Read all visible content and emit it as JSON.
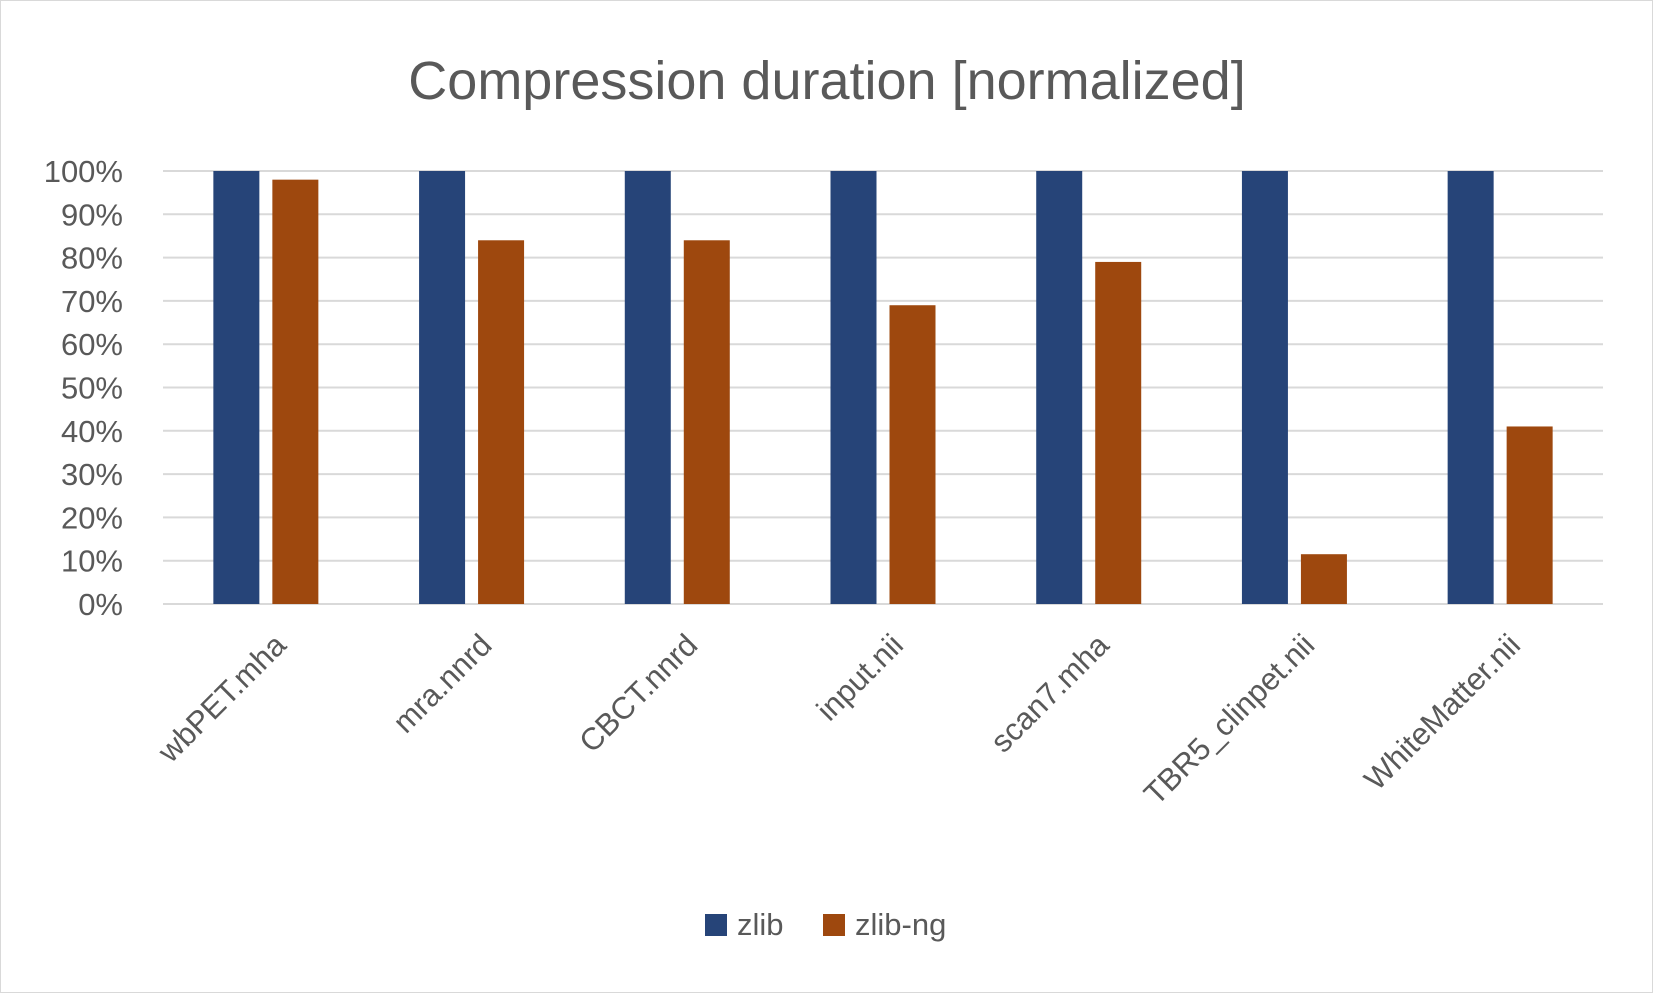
{
  "chart_data": {
    "type": "bar",
    "title": "Compression duration [normalized]",
    "xlabel": "",
    "ylabel": "",
    "ylim": [
      0,
      1
    ],
    "yticks": [
      "0%",
      "10%",
      "20%",
      "30%",
      "40%",
      "50%",
      "60%",
      "70%",
      "80%",
      "90%",
      "100%"
    ],
    "categories": [
      "wbPET.mha",
      "mra.nnrd",
      "CBCT.nnrd",
      "input.nii",
      "scan7.mha",
      "TBR5_clinpet.nii",
      "WhiteMatter.nii"
    ],
    "series": [
      {
        "name": "zlib",
        "color": "#264478",
        "values": [
          1.0,
          1.0,
          1.0,
          1.0,
          1.0,
          1.0,
          1.0
        ]
      },
      {
        "name": "zlib-ng",
        "color": "#9e480e",
        "values": [
          0.98,
          0.84,
          0.84,
          0.69,
          0.79,
          0.115,
          0.41
        ]
      }
    ],
    "grid": true,
    "legend_position": "bottom"
  }
}
